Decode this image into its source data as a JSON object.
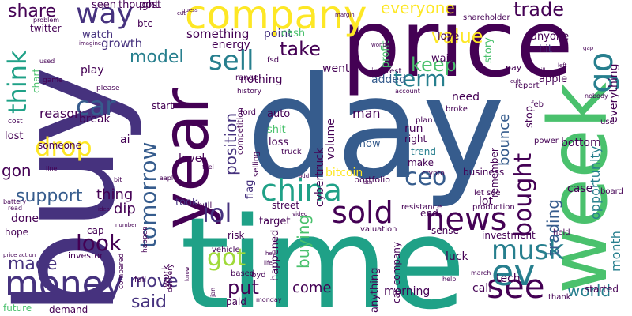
{
  "palette": {
    "dark_purple": "#440154",
    "indigo": "#46327e",
    "slate_blue": "#365c8d",
    "steel_blue": "#277f8e",
    "teal": "#1fa187",
    "green": "#4ac16d",
    "lime": "#a0da39",
    "yellow": "#fde725"
  },
  "words": [
    {
      "text": "day",
      "color": "#365c8d"
    },
    {
      "text": "time",
      "color": "#1fa187"
    },
    {
      "text": "buy",
      "color": "#46327e"
    },
    {
      "text": "price",
      "color": "#440154"
    },
    {
      "text": "week",
      "color": "#4ac16d"
    },
    {
      "text": "year",
      "color": "#440154"
    },
    {
      "text": "company",
      "color": "#fde725"
    },
    {
      "text": "sold",
      "color": "#440154"
    },
    {
      "text": "china",
      "color": "#1fa187"
    },
    {
      "text": "news",
      "color": "#440154"
    },
    {
      "text": "money",
      "color": "#46327e"
    },
    {
      "text": "see",
      "color": "#440154"
    },
    {
      "text": "ev",
      "color": "#277f8e"
    },
    {
      "text": "musk",
      "color": "#277f8e"
    },
    {
      "text": "go",
      "color": "#277f8e"
    },
    {
      "text": "lol",
      "color": "#46327e"
    },
    {
      "text": "got",
      "color": "#a0da39"
    },
    {
      "text": "way",
      "color": "#46327e"
    },
    {
      "text": "sell",
      "color": "#277f8e"
    },
    {
      "text": "car",
      "color": "#365c8d"
    },
    {
      "text": "drop",
      "color": "#fde725"
    },
    {
      "text": "think",
      "color": "#1fa187"
    },
    {
      "text": "tomorrow",
      "color": "#365c8d"
    },
    {
      "text": "bought",
      "color": "#440154"
    },
    {
      "text": "term",
      "color": "#277f8e"
    },
    {
      "text": "take",
      "color": "#440154"
    },
    {
      "text": "keep",
      "color": "#4ac16d"
    },
    {
      "text": "ceo",
      "color": "#365c8d"
    },
    {
      "text": "support",
      "color": "#365c8d"
    },
    {
      "text": "look",
      "color": "#440154"
    },
    {
      "text": "put",
      "color": "#440154"
    },
    {
      "text": "model",
      "color": "#277f8e"
    },
    {
      "text": "value",
      "color": "#fde725"
    },
    {
      "text": "trade",
      "color": "#440154"
    },
    {
      "text": "everyone",
      "color": "#fde725"
    },
    {
      "text": "share",
      "color": "#440154"
    },
    {
      "text": "position",
      "color": "#46327e"
    },
    {
      "text": "buying",
      "color": "#4ac16d"
    },
    {
      "text": "move",
      "color": "#46327e"
    },
    {
      "text": "made",
      "color": "#46327e"
    },
    {
      "text": "world",
      "color": "#277f8e"
    },
    {
      "text": "said",
      "color": "#46327e"
    },
    {
      "text": "gon",
      "color": "#440154"
    },
    {
      "text": "trading",
      "color": "#365c8d"
    },
    {
      "text": "bounce",
      "color": "#365c8d"
    },
    {
      "text": "come",
      "color": "#440154"
    },
    {
      "text": "thing",
      "color": "#440154"
    },
    {
      "text": "dip",
      "color": "#440154"
    },
    {
      "text": "reason",
      "color": "#440154"
    },
    {
      "text": "something",
      "color": "#440154"
    },
    {
      "text": "growth",
      "color": "#46327e"
    },
    {
      "text": "watch",
      "color": "#46327e"
    },
    {
      "text": "seen",
      "color": "#440154"
    },
    {
      "text": "thought",
      "color": "#440154"
    },
    {
      "text": "post",
      "color": "#440154"
    },
    {
      "text": "btc",
      "color": "#440154"
    },
    {
      "text": "point",
      "color": "#46327e"
    },
    {
      "text": "cash",
      "color": "#4ac16d"
    },
    {
      "text": "energy",
      "color": "#440154"
    },
    {
      "text": "nothing",
      "color": "#440154"
    },
    {
      "text": "went",
      "color": "#440154"
    },
    {
      "text": "added",
      "color": "#365c8d"
    },
    {
      "text": "profit",
      "color": "#4ac16d"
    },
    {
      "text": "story",
      "color": "#4ac16d"
    },
    {
      "text": "love",
      "color": "#440154"
    },
    {
      "text": "wait",
      "color": "#440154"
    },
    {
      "text": "hit",
      "color": "#46327e"
    },
    {
      "text": "anyone",
      "color": "#440154"
    },
    {
      "text": "apple",
      "color": "#440154"
    },
    {
      "text": "everything",
      "color": "#440154"
    },
    {
      "text": "opportunity",
      "color": "#277f8e"
    },
    {
      "text": "month",
      "color": "#277f8e"
    },
    {
      "text": "bottom",
      "color": "#440154"
    },
    {
      "text": "case",
      "color": "#440154"
    },
    {
      "text": "level",
      "color": "#440154"
    },
    {
      "text": "auto",
      "color": "#440154"
    },
    {
      "text": "shit",
      "color": "#4ac16d"
    },
    {
      "text": "loss",
      "color": "#440154"
    },
    {
      "text": "cybertruck",
      "color": "#440154"
    },
    {
      "text": "volume",
      "color": "#440154"
    },
    {
      "text": "man",
      "color": "#440154"
    },
    {
      "text": "need",
      "color": "#440154"
    },
    {
      "text": "run",
      "color": "#440154"
    },
    {
      "text": "right",
      "color": "#440154"
    },
    {
      "text": "stop",
      "color": "#440154"
    },
    {
      "text": "show",
      "color": "#365c8d"
    },
    {
      "text": "trend",
      "color": "#277f8e"
    },
    {
      "text": "make",
      "color": "#440154"
    },
    {
      "text": "bitcoin",
      "color": "#fde725"
    },
    {
      "text": "flag",
      "color": "#46327e"
    },
    {
      "text": "target",
      "color": "#440154"
    },
    {
      "text": "street",
      "color": "#440154"
    },
    {
      "text": "end",
      "color": "#440154"
    },
    {
      "text": "lot",
      "color": "#440154"
    },
    {
      "text": "took",
      "color": "#46327e"
    },
    {
      "text": "ai",
      "color": "#440154"
    },
    {
      "text": "break",
      "color": "#440154"
    },
    {
      "text": "start",
      "color": "#440154"
    },
    {
      "text": "someone",
      "color": "#440154"
    },
    {
      "text": "lost",
      "color": "#440154"
    },
    {
      "text": "play",
      "color": "#440154"
    },
    {
      "text": "chart",
      "color": "#4ac16d"
    },
    {
      "text": "twitter",
      "color": "#440154"
    },
    {
      "text": "cap",
      "color": "#440154"
    },
    {
      "text": "work",
      "color": "#440154"
    },
    {
      "text": "done",
      "color": "#440154"
    },
    {
      "text": "hope",
      "color": "#440154"
    },
    {
      "text": "investor",
      "color": "#440154"
    },
    {
      "text": "demand",
      "color": "#440154"
    },
    {
      "text": "future",
      "color": "#4ac16d"
    },
    {
      "text": "morning",
      "color": "#440154"
    },
    {
      "text": "anything",
      "color": "#440154"
    },
    {
      "text": "happened",
      "color": "#440154"
    },
    {
      "text": "call",
      "color": "#440154"
    },
    {
      "text": "tech",
      "color": "#440154"
    },
    {
      "text": "luck",
      "color": "#440154"
    },
    {
      "text": "investment",
      "color": "#440154"
    },
    {
      "text": "started",
      "color": "#440154"
    },
    {
      "text": "paid",
      "color": "#440154"
    },
    {
      "text": "risk",
      "color": "#440154"
    },
    {
      "text": "sense",
      "color": "#440154"
    },
    {
      "text": "business",
      "color": "#440154"
    },
    {
      "text": "car company",
      "color": "#440154"
    },
    {
      "text": "competition",
      "color": "#440154"
    },
    {
      "text": "selling",
      "color": "#440154"
    },
    {
      "text": "portfolio",
      "color": "#440154"
    },
    {
      "text": "interest",
      "color": "#440154"
    },
    {
      "text": "range",
      "color": "#440154"
    },
    {
      "text": "history",
      "color": "#440154"
    },
    {
      "text": "fsd",
      "color": "#440154"
    },
    {
      "text": "pay",
      "color": "#440154"
    },
    {
      "text": "report",
      "color": "#440154"
    },
    {
      "text": "feb",
      "color": "#440154"
    },
    {
      "text": "power",
      "color": "#440154"
    },
    {
      "text": "broke",
      "color": "#440154"
    },
    {
      "text": "plan",
      "color": "#440154"
    },
    {
      "text": "ford",
      "color": "#440154"
    },
    {
      "text": "truck",
      "color": "#440154"
    },
    {
      "text": "crypto",
      "color": "#440154"
    },
    {
      "text": "remember",
      "color": "#440154"
    },
    {
      "text": "production",
      "color": "#440154"
    },
    {
      "text": "resistance",
      "color": "#440154"
    },
    {
      "text": "valuation",
      "color": "#440154"
    },
    {
      "text": "let see",
      "color": "#440154"
    },
    {
      "text": "bull",
      "color": "#440154"
    },
    {
      "text": "vehicle",
      "color": "#440154"
    },
    {
      "text": "based",
      "color": "#440154"
    },
    {
      "text": "byd",
      "color": "#440154"
    },
    {
      "text": "fall",
      "color": "#440154"
    },
    {
      "text": "delivery",
      "color": "#440154"
    },
    {
      "text": "compared",
      "color": "#440154"
    },
    {
      "text": "happen",
      "color": "#440154"
    },
    {
      "text": "monday",
      "color": "#440154"
    },
    {
      "text": "thank",
      "color": "#440154"
    },
    {
      "text": "held",
      "color": "#440154"
    },
    {
      "text": "board",
      "color": "#440154"
    },
    {
      "text": "use",
      "color": "#440154"
    },
    {
      "text": "nobody",
      "color": "#440154"
    },
    {
      "text": "account",
      "color": "#440154"
    },
    {
      "text": "cost",
      "color": "#440154"
    },
    {
      "text": "game",
      "color": "#440154"
    },
    {
      "text": "please",
      "color": "#440154"
    },
    {
      "text": "used",
      "color": "#440154"
    },
    {
      "text": "problem",
      "color": "#440154"
    },
    {
      "text": "imagine",
      "color": "#440154"
    },
    {
      "text": "cut",
      "color": "#440154"
    },
    {
      "text": "guess",
      "color": "#440154"
    },
    {
      "text": "margin",
      "color": "#440154"
    },
    {
      "text": "shareholder",
      "color": "#440154"
    },
    {
      "text": "gap",
      "color": "#440154"
    },
    {
      "text": "left",
      "color": "#440154"
    },
    {
      "text": "till",
      "color": "#440154"
    },
    {
      "text": "cult",
      "color": "#440154"
    },
    {
      "text": "chance",
      "color": "#440154"
    },
    {
      "text": "wonder",
      "color": "#440154"
    },
    {
      "text": "line",
      "color": "#440154"
    },
    {
      "text": "bit",
      "color": "#440154"
    },
    {
      "text": "aapl",
      "color": "#440154"
    },
    {
      "text": "feel",
      "color": "#440154"
    },
    {
      "text": "add",
      "color": "#440154"
    },
    {
      "text": "ath",
      "color": "#440154"
    },
    {
      "text": "battery",
      "color": "#440154"
    },
    {
      "text": "read",
      "color": "#440154"
    },
    {
      "text": "idea",
      "color": "#440154"
    },
    {
      "text": "number",
      "color": "#440154"
    },
    {
      "text": "price action",
      "color": "#440154"
    },
    {
      "text": "know",
      "color": "#440154"
    },
    {
      "text": "jan",
      "color": "#440154"
    },
    {
      "text": "life",
      "color": "#440154"
    },
    {
      "text": "hey",
      "color": "#440154"
    },
    {
      "text": "video",
      "color": "#440154"
    },
    {
      "text": "help",
      "color": "#440154"
    },
    {
      "text": "march",
      "color": "#440154"
    },
    {
      "text": "tesla",
      "color": "#440154"
    }
  ]
}
